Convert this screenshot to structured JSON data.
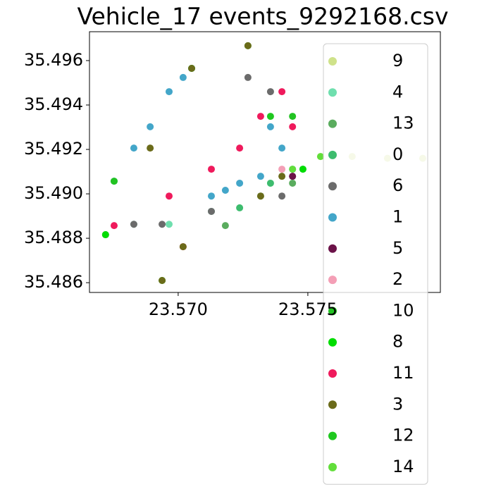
{
  "chart_data": {
    "type": "scatter",
    "title": "Vehicle_17 events_9292168.csv",
    "xlim": [
      23.56658,
      23.58011
    ],
    "ylim": [
      35.48556,
      35.4973
    ],
    "xticks": [
      {
        "value": 23.57,
        "label": "23.570"
      },
      {
        "value": 23.575,
        "label": "23.575"
      }
    ],
    "yticks": [
      35.486,
      35.488,
      {
        "value": 35.49,
        "label": "35.490"
      },
      35.492,
      35.494,
      35.496
    ],
    "legend": "upper right",
    "series": [
      {
        "name": "9",
        "color": "#cfe28a",
        "x": [
          23.57549,
          23.57671,
          23.57807,
          23.57943
        ],
        "y": [
          35.49168,
          35.49168,
          35.4916,
          35.4916
        ]
      },
      {
        "name": "4",
        "color": "#6fdfae",
        "x": [
          23.56829,
          23.56965,
          23.57128,
          23.57318
        ],
        "y": [
          35.48863,
          35.48863,
          35.48921,
          35.4899
        ]
      },
      {
        "name": "13",
        "color": "#5aac5e",
        "x": [
          23.57182,
          23.57441
        ],
        "y": [
          35.48857,
          35.49048
        ]
      },
      {
        "name": "0",
        "color": "#3dbc6e",
        "x": [
          23.57237,
          23.57356
        ],
        "y": [
          35.48937,
          35.49048
        ]
      },
      {
        "name": "6",
        "color": "#6b6b6b",
        "x": [
          23.5672,
          23.56829,
          23.56938,
          23.57128,
          23.57269,
          23.57356,
          23.574,
          23.57441
        ],
        "y": [
          35.48816,
          35.48863,
          35.48863,
          35.48921,
          35.49524,
          35.4946,
          35.4899,
          35.49079
        ]
      },
      {
        "name": "1",
        "color": "#43a6c9",
        "x": [
          23.56753,
          23.56829,
          23.56892,
          23.56965,
          23.57019,
          23.57052,
          23.57128,
          23.57182,
          23.57237,
          23.57318,
          23.57356,
          23.574,
          23.57441,
          23.57481
        ],
        "y": [
          35.49057,
          35.49206,
          35.49302,
          35.4946,
          35.49524,
          35.49565,
          35.4899,
          35.49016,
          35.49048,
          35.49079,
          35.49302,
          35.49206,
          35.49111,
          35.49111
        ]
      },
      {
        "name": "5",
        "color": "#6b1248",
        "x": [
          23.57441
        ],
        "y": [
          35.49079
        ]
      },
      {
        "name": "2",
        "color": "#f49fb6",
        "x": [
          23.574
        ],
        "y": [
          35.49111
        ]
      },
      {
        "name": "10",
        "color": "#22c322",
        "x": [
          23.56753,
          23.57269,
          23.57441
        ],
        "y": [
          35.49057,
          35.49667,
          35.49349
        ]
      },
      {
        "name": "8",
        "color": "#00dd00",
        "x": [
          23.5672,
          23.56938,
          23.57052,
          23.57481
        ],
        "y": [
          35.48816,
          35.4861,
          35.49565,
          35.49111
        ]
      },
      {
        "name": "11",
        "color": "#ef1a5c",
        "x": [
          23.56753,
          23.56965,
          23.57128,
          23.57237,
          23.57318,
          23.57441,
          23.574,
          23.57019
        ],
        "y": [
          35.48857,
          35.4899,
          35.49111,
          35.49206,
          35.49349,
          35.49302,
          35.4946,
          35.48762
        ]
      },
      {
        "name": "3",
        "color": "#6b6b1a",
        "x": [
          23.56892,
          23.57052,
          23.57269,
          23.57318,
          23.574,
          23.57019,
          23.56938
        ],
        "y": [
          35.49206,
          35.49565,
          35.49667,
          35.4899,
          35.49079,
          35.48762,
          35.4861
        ]
      },
      {
        "name": "12",
        "color": "#1fc81f",
        "x": [
          23.57356
        ],
        "y": [
          35.49349
        ]
      },
      {
        "name": "14",
        "color": "#62de3a",
        "x": [
          23.57549,
          23.57441
        ],
        "y": [
          35.49168,
          35.49111
        ]
      }
    ]
  }
}
